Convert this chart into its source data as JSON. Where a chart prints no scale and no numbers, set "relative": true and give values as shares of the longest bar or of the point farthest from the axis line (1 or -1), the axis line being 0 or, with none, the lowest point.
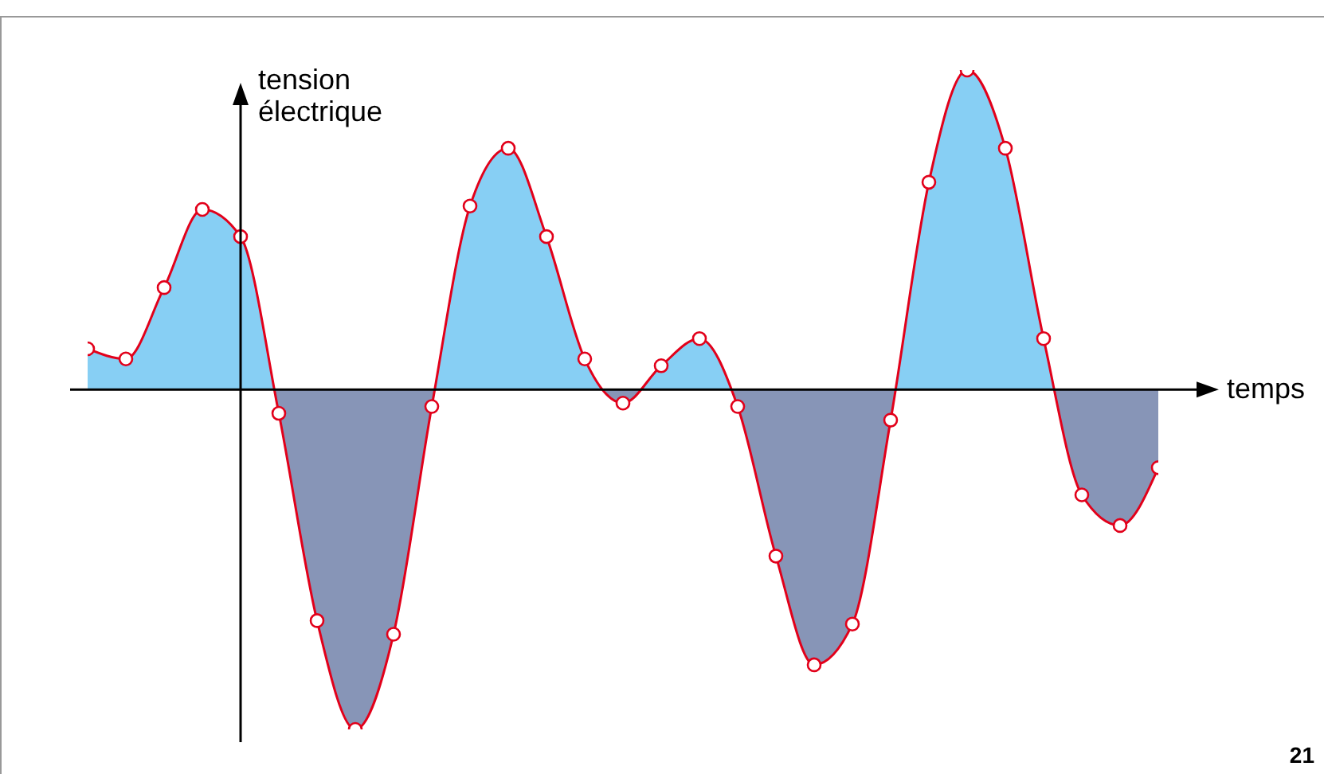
{
  "chart_data": {
    "type": "area",
    "relative": true,
    "xlabel": "temps",
    "ylabel": "tension électrique",
    "marker": "circle",
    "annotations": [
      "21"
    ],
    "categories": [
      null,
      null,
      null,
      null,
      null,
      null,
      null,
      null,
      null,
      null,
      null,
      null,
      null,
      null,
      null,
      null,
      null,
      null,
      null,
      null,
      null,
      null,
      null,
      null,
      null,
      null,
      null,
      null,
      null
    ],
    "series": [
      {
        "color": "#e2001a",
        "values": [
          0.12,
          0.09,
          0.3,
          0.53,
          0.45,
          -0.07,
          -0.68,
          -1,
          -0.72,
          -0.05,
          0.54,
          0.71,
          0.45,
          0.09,
          -0.04,
          0.07,
          0.15,
          -0.05,
          -0.49,
          -0.81,
          -0.69,
          -0.09,
          0.61,
          0.94,
          0.71,
          0.15,
          -0.31,
          -0.4,
          -0.23
        ]
      }
    ]
  }
}
